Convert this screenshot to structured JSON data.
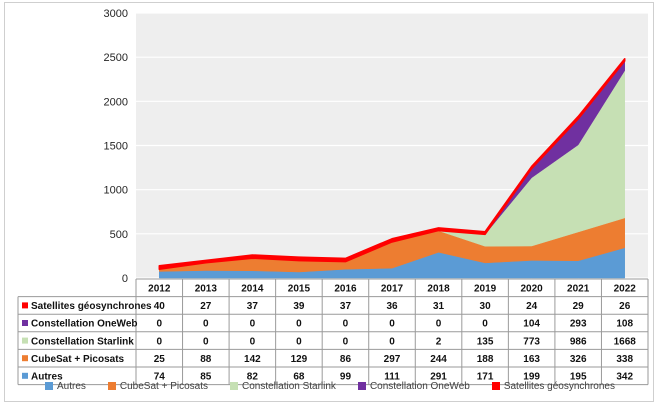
{
  "chart_data": {
    "type": "area",
    "stacked": true,
    "categories": [
      "2012",
      "2013",
      "2014",
      "2015",
      "2016",
      "2017",
      "2018",
      "2019",
      "2020",
      "2021",
      "2022"
    ],
    "ylim": [
      0,
      3000
    ],
    "yticks": [
      "0",
      "500",
      "1000",
      "1500",
      "2000",
      "2500",
      "3000"
    ],
    "grid": true,
    "legend_position": "bottom",
    "series": [
      {
        "name": "Autres",
        "color": "#5B9BD5",
        "values": [
          74,
          85,
          82,
          68,
          99,
          111,
          291,
          171,
          199,
          195,
          342
        ]
      },
      {
        "name": "CubeSat + Picosats",
        "color": "#ED7D31",
        "values": [
          25,
          88,
          142,
          129,
          86,
          297,
          244,
          188,
          163,
          326,
          338
        ]
      },
      {
        "name": "Constellation Starlink",
        "color": "#C6E0B4",
        "values": [
          0,
          0,
          0,
          0,
          0,
          0,
          2,
          135,
          773,
          986,
          1668
        ]
      },
      {
        "name": "Constellation OneWeb",
        "color": "#7030A0",
        "values": [
          0,
          0,
          0,
          0,
          0,
          0,
          0,
          0,
          104,
          293,
          108
        ]
      },
      {
        "name": "Satellites géosynchrones",
        "color": "#FF0000",
        "values": [
          40,
          27,
          37,
          39,
          37,
          36,
          31,
          30,
          24,
          29,
          26
        ]
      }
    ],
    "table_rows": [
      {
        "label": "Satellites géosynchrones",
        "color": "#FF0000",
        "values": [
          "40",
          "27",
          "37",
          "39",
          "37",
          "36",
          "31",
          "30",
          "24",
          "29",
          "26"
        ]
      },
      {
        "label": "Constellation OneWeb",
        "color": "#7030A0",
        "values": [
          "0",
          "0",
          "0",
          "0",
          "0",
          "0",
          "0",
          "0",
          "104",
          "293",
          "108"
        ]
      },
      {
        "label": "Constellation Starlink",
        "color": "#C6E0B4",
        "values": [
          "0",
          "0",
          "0",
          "0",
          "0",
          "0",
          "2",
          "135",
          "773",
          "986",
          "1668"
        ]
      },
      {
        "label": "CubeSat + Picosats",
        "color": "#ED7D31",
        "values": [
          "25",
          "88",
          "142",
          "129",
          "86",
          "297",
          "244",
          "188",
          "163",
          "326",
          "338"
        ]
      },
      {
        "label": "Autres",
        "color": "#5B9BD5",
        "values": [
          "74",
          "85",
          "82",
          "68",
          "99",
          "111",
          "291",
          "171",
          "199",
          "195",
          "342"
        ]
      }
    ]
  }
}
